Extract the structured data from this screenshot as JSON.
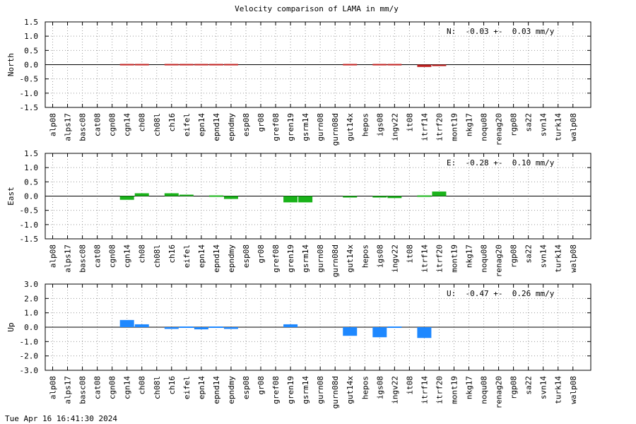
{
  "title": "Velocity comparison of LAMA in mm/y",
  "timestamp": "Tue Apr 16 16:41:30 2024",
  "chart_data": [
    {
      "type": "bar",
      "ylabel": "North",
      "annotation": "N:  -0.03 +-  0.03 mm/y",
      "color": "#c0201f",
      "ylim": [
        -1.5,
        1.5
      ],
      "yticks": [
        1.5,
        1.0,
        0.5,
        0.0,
        -0.5,
        -1.0,
        -1.5
      ],
      "ytick_labels": [
        "1.5",
        "1.0",
        "0.5",
        "0.0",
        "-0.5",
        "-1.0",
        "-1.5"
      ],
      "grid": true,
      "categories": [
        "alp08",
        "alps17",
        "basc08",
        "cat08",
        "cgn08",
        "cgn14",
        "ch08",
        "ch08l",
        "ch16",
        "eifel",
        "epn14",
        "epnd14",
        "epndmy",
        "esp08",
        "gr08",
        "gref08",
        "gren19",
        "gsrm14",
        "gurn08",
        "gurn08d",
        "gut14x",
        "hepos",
        "igs08",
        "ingv22",
        "it08",
        "itrf14",
        "itrf20",
        "mont19",
        "nkg17",
        "noqu08",
        "renag20",
        "rgp08",
        "sa22",
        "svn14",
        "turk14",
        "walp08"
      ],
      "values": [
        0,
        0,
        0,
        0,
        0,
        0.02,
        -0.03,
        0,
        0.02,
        -0.02,
        -0.04,
        -0.04,
        0.02,
        0,
        0,
        0,
        0,
        0,
        0,
        0,
        -0.03,
        0,
        0.02,
        0.02,
        0,
        -0.08,
        -0.05,
        0,
        0,
        0,
        0,
        0,
        0,
        0,
        0,
        0
      ]
    },
    {
      "type": "bar",
      "ylabel": "East",
      "annotation": "E:  -0.28 +-  0.10 mm/y",
      "color": "#1ab31a",
      "ylim": [
        -1.5,
        1.5
      ],
      "yticks": [
        1.5,
        1.0,
        0.5,
        0.0,
        -0.5,
        -1.0,
        -1.5
      ],
      "ytick_labels": [
        "1.5",
        "1.0",
        "0.5",
        "0.0",
        "-0.5",
        "-1.0",
        "-1.5"
      ],
      "grid": true,
      "categories": [
        "alp08",
        "alps17",
        "basc08",
        "cat08",
        "cgn08",
        "cgn14",
        "ch08",
        "ch08l",
        "ch16",
        "eifel",
        "epn14",
        "epnd14",
        "epndmy",
        "esp08",
        "gr08",
        "gref08",
        "gren19",
        "gsrm14",
        "gurn08",
        "gurn08d",
        "gut14x",
        "hepos",
        "igs08",
        "ingv22",
        "it08",
        "itrf14",
        "itrf20",
        "mont19",
        "nkg17",
        "noqu08",
        "renag20",
        "rgp08",
        "sa22",
        "svn14",
        "turk14",
        "walp08"
      ],
      "values": [
        0,
        0,
        0,
        0,
        0,
        -0.13,
        0.1,
        0,
        0.1,
        0.05,
        0,
        0.02,
        -0.1,
        0,
        0,
        0,
        -0.22,
        -0.22,
        0,
        0,
        -0.05,
        0,
        -0.05,
        -0.07,
        0,
        -0.02,
        0.16,
        0,
        0,
        0,
        0,
        0,
        0,
        0,
        0,
        0
      ]
    },
    {
      "type": "bar",
      "ylabel": "Up",
      "annotation": "U:  -0.47 +-  0.26 mm/y",
      "color": "#1e88ff",
      "ylim": [
        -3.0,
        3.0
      ],
      "yticks": [
        3.0,
        2.0,
        1.0,
        0.0,
        -1.0,
        -2.0,
        -3.0
      ],
      "ytick_labels": [
        "3.0",
        "2.0",
        "1.0",
        "0.0",
        "-1.0",
        "-2.0",
        "-3.0"
      ],
      "grid": true,
      "categories": [
        "alp08",
        "alps17",
        "basc08",
        "cat08",
        "cgn08",
        "cgn14",
        "ch08",
        "ch08l",
        "ch16",
        "eifel",
        "epn14",
        "epnd14",
        "epndmy",
        "esp08",
        "gr08",
        "gref08",
        "gren19",
        "gsrm14",
        "gurn08",
        "gurn08d",
        "gut14x",
        "hepos",
        "igs08",
        "ingv22",
        "it08",
        "itrf14",
        "itrf20",
        "mont19",
        "nkg17",
        "noqu08",
        "renag20",
        "rgp08",
        "sa22",
        "svn14",
        "turk14",
        "walp08"
      ],
      "values": [
        0,
        0,
        0,
        0,
        0,
        0.5,
        0.2,
        0,
        -0.12,
        -0.05,
        -0.15,
        0.05,
        -0.12,
        0,
        0,
        0,
        0.2,
        0,
        0,
        0,
        -0.6,
        0,
        -0.7,
        0.05,
        0,
        -0.75,
        0,
        0,
        0,
        0,
        0,
        0,
        0,
        0,
        0,
        0
      ]
    }
  ]
}
